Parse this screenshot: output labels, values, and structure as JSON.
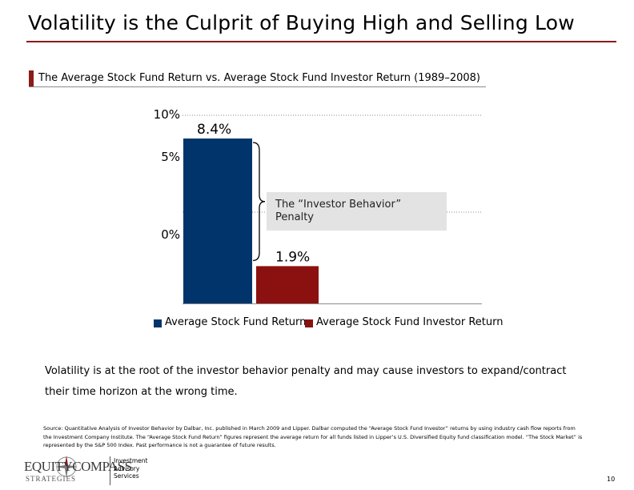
{
  "slide": {
    "title": "Volatility is the Culprit of Buying High and Selling Low",
    "chart_heading": "The Average Stock Fund Return vs. Average Stock Fund Investor Return (1989–2008)",
    "callout": "The “Investor Behavior”\nPenalty",
    "body": "Volatility is at the root of the investor behavior penalty and may cause investors to expand/contract their time horizon at the wrong time.",
    "source": "Source: Quantitative Analysis of Investor Behavior by Dalbar, Inc. published in March 2009 and Lipper. Dalbar computed the “Average Stock Fund Investor” returns by using industry cash flow reports from the Investment Company Institute. The “Average Stock Fund Return” figures represent the average return for all funds listed in Lipper’s U.S. Diversified Equity fund classification model. “The Stock Market” is represented by the S&P 500 Index. Past performance is not a guarantee of future results.",
    "logo_main": "EQUITYCOMPASS",
    "logo_sub": "STRATEGIES",
    "services": "Investment\nAdvisory\nServices",
    "page_number": "10",
    "brand_color": "#8b1a1a",
    "icons": {
      "logo_mark": "compass-icon"
    }
  },
  "chart_data": {
    "type": "bar",
    "categories": [
      "Average Stock Fund Return",
      "Average Stock Fund Investor Return"
    ],
    "values": [
      8.4,
      1.9
    ],
    "value_labels": [
      "8.4%",
      "1.9%"
    ],
    "colors": [
      "#00346b",
      "#8b1111"
    ],
    "yticks": [
      {
        "value": 10,
        "label": "10%"
      },
      {
        "value": 5,
        "label": "5%"
      },
      {
        "value": 0,
        "label": "0%"
      }
    ],
    "ylim": [
      0,
      10
    ],
    "legend": [
      "Average Stock Fund Return",
      "Average Stock Fund Investor Return"
    ],
    "legend_position": "bottom"
  }
}
